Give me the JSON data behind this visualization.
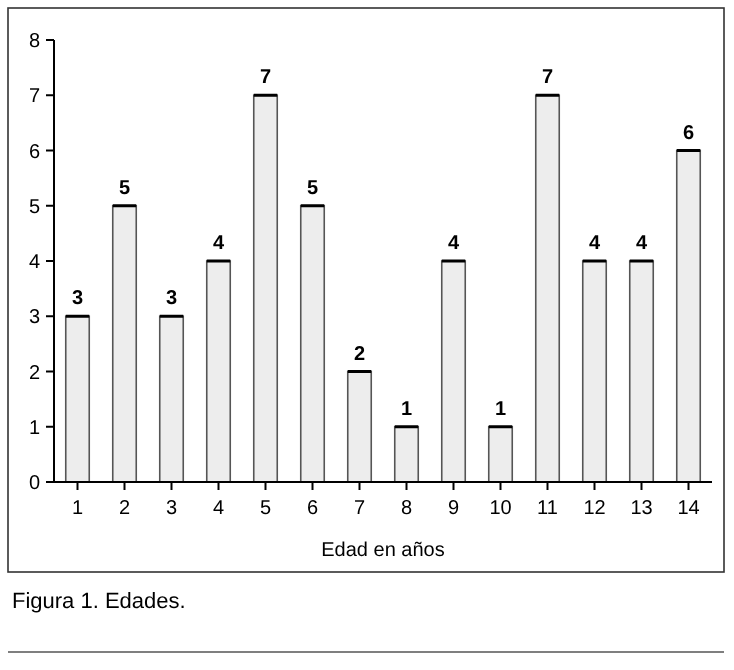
{
  "chart_data": {
    "type": "bar",
    "xlabel": "Edad en años",
    "categories": [
      "1",
      "2",
      "3",
      "4",
      "5",
      "6",
      "7",
      "8",
      "9",
      "10",
      "11",
      "12",
      "13",
      "14"
    ],
    "values": [
      3,
      5,
      3,
      4,
      7,
      5,
      2,
      1,
      4,
      1,
      7,
      4,
      4,
      6
    ],
    "color": "#ededed",
    "ylim": [
      0,
      8
    ],
    "yticks": [
      0,
      1,
      2,
      3,
      4,
      5,
      6,
      7,
      8
    ],
    "data_labels": true,
    "grid": false,
    "annotations": [
      "Figura 1. Edades."
    ]
  }
}
